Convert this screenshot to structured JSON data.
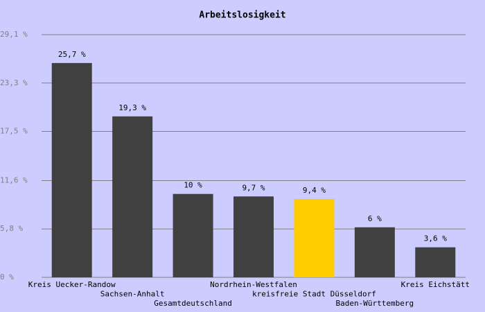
{
  "chart_data": {
    "type": "bar",
    "title": "Arbeitslosigkeit",
    "categories": [
      "Kreis Uecker-Randow",
      "Sachsen-Anhalt",
      "Gesamtdeutschland",
      "Nordrhein-Westfalen",
      "kreisfreie Stadt Düsseldorf",
      "Baden-Württemberg",
      "Kreis Eichstätt"
    ],
    "values": [
      25.7,
      19.3,
      10,
      9.7,
      9.4,
      6,
      3.6
    ],
    "value_labels": [
      "25,7 %",
      "19,3 %",
      "10 %",
      "9,7 %",
      "9,4 %",
      "6 %",
      "3,6 %"
    ],
    "colors": [
      "#404040",
      "#404040",
      "#404040",
      "#404040",
      "#ffcc00",
      "#404040",
      "#404040"
    ],
    "ylim": [
      0,
      29.1
    ],
    "yticks": [
      {
        "value": 0,
        "label": "0 %"
      },
      {
        "value": 5.8,
        "label": "5,8 %"
      },
      {
        "value": 11.6,
        "label": "11,6 %"
      },
      {
        "value": 17.5,
        "label": "17,5 %"
      },
      {
        "value": 23.3,
        "label": "23,3 %"
      },
      {
        "value": 29.1,
        "label": "29,1 %"
      }
    ],
    "grid": true
  }
}
